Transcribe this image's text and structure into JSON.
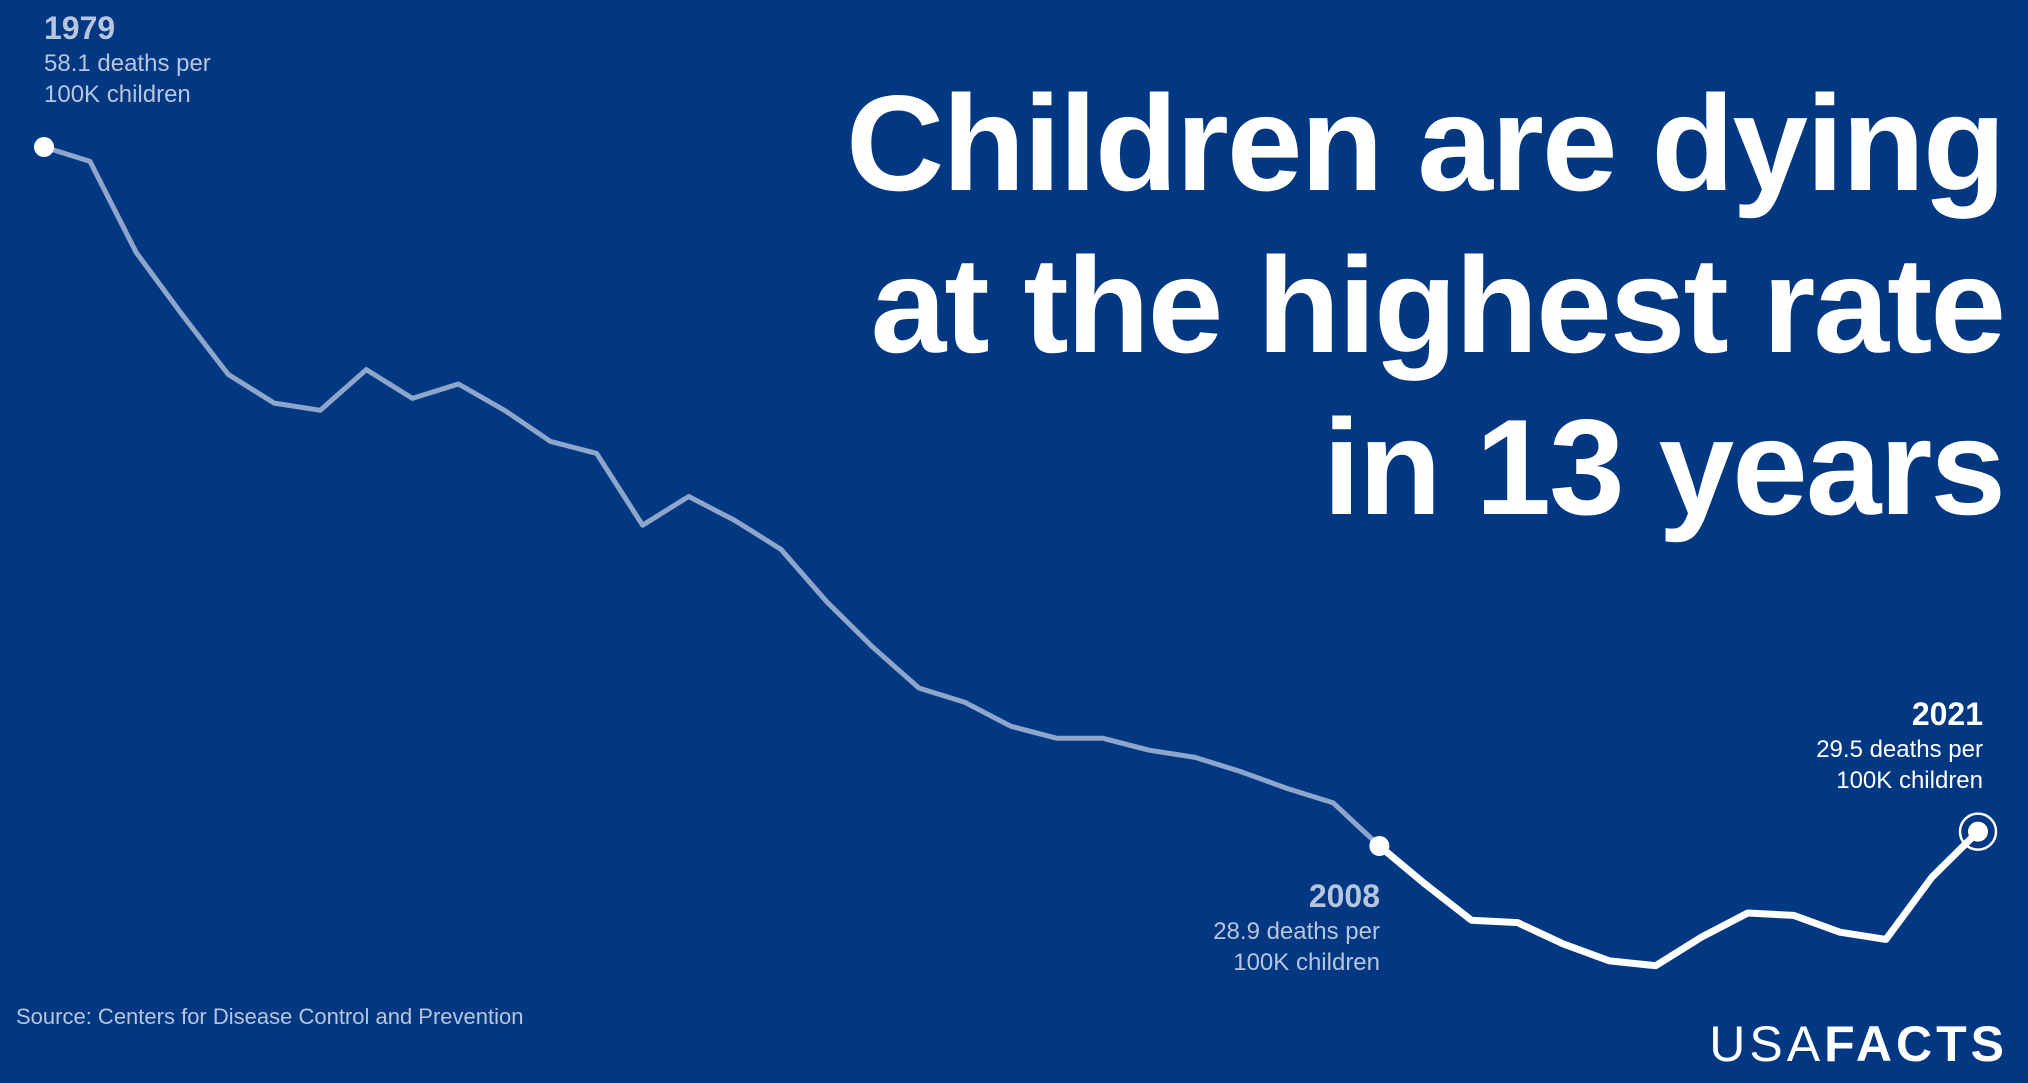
{
  "title_lines": [
    "Children are dying",
    "at the highest rate",
    "in 13 years"
  ],
  "source": "Source: Centers for Disease Control and Prevention",
  "logo": {
    "light": "USA",
    "bold": "FACTS"
  },
  "colors": {
    "background": "#023882",
    "line_past": "#8ea6cb",
    "line_recent": "#ffffff",
    "label_light": "#b7c5de"
  },
  "annotations": {
    "start": {
      "year": "1979",
      "line1": "58.1 deaths per",
      "line2": "100K children"
    },
    "mid": {
      "year": "2008",
      "line1": "28.9 deaths per",
      "line2": "100K children"
    },
    "end": {
      "year": "2021",
      "line1": "29.5 deaths per",
      "line2": "100K children"
    }
  },
  "chart_data": {
    "type": "line",
    "title": "Children are dying at the highest rate in 13 years",
    "xlabel": "",
    "ylabel": "",
    "axes_visible": false,
    "grid": false,
    "highlight_from": 2008,
    "x": [
      1979,
      1980,
      1981,
      1982,
      1983,
      1984,
      1985,
      1986,
      1987,
      1988,
      1989,
      1990,
      1991,
      1992,
      1993,
      1994,
      1995,
      1996,
      1997,
      1998,
      1999,
      2000,
      2001,
      2002,
      2003,
      2004,
      2005,
      2006,
      2007,
      2008,
      2009,
      2010,
      2011,
      2012,
      2013,
      2014,
      2015,
      2016,
      2017,
      2018,
      2019,
      2020,
      2021
    ],
    "y": [
      58.1,
      57.5,
      53.7,
      51.1,
      48.6,
      47.4,
      47.1,
      48.8,
      47.6,
      48.2,
      47.1,
      45.8,
      45.3,
      42.3,
      43.5,
      42.5,
      41.3,
      39.1,
      37.2,
      35.5,
      34.9,
      33.9,
      33.4,
      33.4,
      32.9,
      32.6,
      32.0,
      31.3,
      30.7,
      28.9,
      27.3,
      25.8,
      25.7,
      24.8,
      24.1,
      23.9,
      25.1,
      26.1,
      26.0,
      25.3,
      25.0,
      27.6,
      29.5
    ],
    "units": "deaths per 100K children"
  }
}
